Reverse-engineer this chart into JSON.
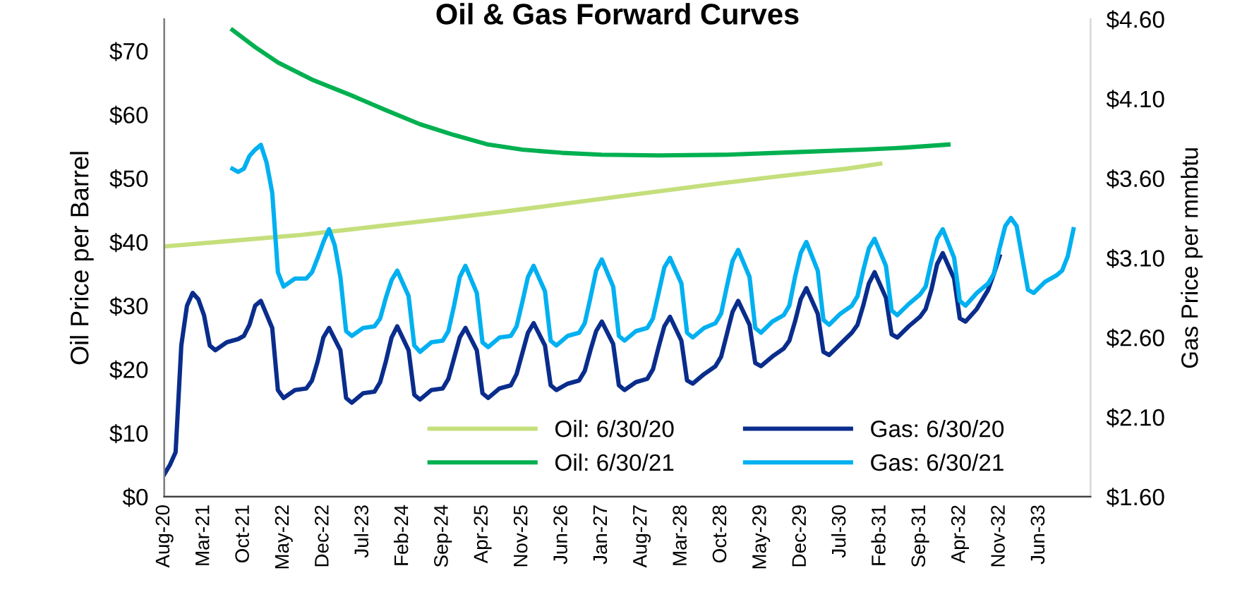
{
  "chart_data": {
    "type": "line",
    "title": "Oil & Gas Forward Curves",
    "ylabel": "Oil Price per Barrel",
    "y2label": "Gas Price per mmbtu",
    "xlim": [
      "2020-08",
      "2034-03"
    ],
    "xticks": [
      {
        "value": "2020-08",
        "label": "Aug-20"
      },
      {
        "value": "2021-03",
        "label": "Mar-21"
      },
      {
        "value": "2021-10",
        "label": "Oct-21"
      },
      {
        "value": "2022-05",
        "label": "May-22"
      },
      {
        "value": "2022-12",
        "label": "Dec-22"
      },
      {
        "value": "2023-07",
        "label": "Jul-23"
      },
      {
        "value": "2024-02",
        "label": "Feb-24"
      },
      {
        "value": "2024-09",
        "label": "Sep-24"
      },
      {
        "value": "2025-04",
        "label": "Apr-25"
      },
      {
        "value": "2025-11",
        "label": "Nov-25"
      },
      {
        "value": "2026-06",
        "label": "Jun-26"
      },
      {
        "value": "2027-01",
        "label": "Jan-27"
      },
      {
        "value": "2027-08",
        "label": "Aug-27"
      },
      {
        "value": "2028-03",
        "label": "Mar-28"
      },
      {
        "value": "2028-10",
        "label": "Oct-28"
      },
      {
        "value": "2029-05",
        "label": "May-29"
      },
      {
        "value": "2029-12",
        "label": "Dec-29"
      },
      {
        "value": "2030-07",
        "label": "Jul-30"
      },
      {
        "value": "2031-02",
        "label": "Feb-31"
      },
      {
        "value": "2031-09",
        "label": "Sep-31"
      },
      {
        "value": "2032-04",
        "label": "Apr-32"
      },
      {
        "value": "2032-11",
        "label": "Nov-32"
      },
      {
        "value": "2033-06",
        "label": "Jun-33"
      }
    ],
    "ylim": [
      0,
      75
    ],
    "yticks": [
      {
        "value": 0,
        "label": "$0"
      },
      {
        "value": 10,
        "label": "$10"
      },
      {
        "value": 20,
        "label": "$20"
      },
      {
        "value": 30,
        "label": "$30"
      },
      {
        "value": 40,
        "label": "$40"
      },
      {
        "value": 50,
        "label": "$50"
      },
      {
        "value": 60,
        "label": "$60"
      },
      {
        "value": 70,
        "label": "$70"
      }
    ],
    "y2lim": [
      1.6,
      4.6
    ],
    "y2ticks": [
      {
        "value": 1.6,
        "label": "$1.60"
      },
      {
        "value": 2.1,
        "label": "$2.10"
      },
      {
        "value": 2.6,
        "label": "$2.60"
      },
      {
        "value": 3.1,
        "label": "$3.10"
      },
      {
        "value": 3.6,
        "label": "$3.60"
      },
      {
        "value": 4.1,
        "label": "$4.10"
      },
      {
        "value": 4.6,
        "label": "$4.60"
      }
    ],
    "grid": false,
    "legend": "bottom right",
    "marker": "none",
    "line_style": "solid",
    "series": [
      {
        "name": "Oil: 6/30/20",
        "color": "#c4df7c",
        "x": [
          "2020-08",
          "2021-08",
          "2022-08",
          "2023-08",
          "2024-08",
          "2025-08",
          "2026-08",
          "2027-08",
          "2028-08",
          "2029-08",
          "2030-08",
          "2031-02"
        ],
        "values": [
          39.3,
          40.2,
          41.1,
          42.3,
          43.5,
          44.8,
          46.2,
          47.6,
          49.0,
          50.3,
          51.5,
          52.3
        ]
      },
      {
        "name": "Oil: 6/30/21",
        "color": "#00b050",
        "x": [
          "2021-08",
          "2021-12",
          "2022-04",
          "2022-10",
          "2023-05",
          "2023-11",
          "2024-05",
          "2024-11",
          "2025-05",
          "2025-11",
          "2026-06",
          "2027-01",
          "2027-11",
          "2028-11",
          "2029-11",
          "2030-11",
          "2031-06",
          "2032-02"
        ],
        "values": [
          73.3,
          70.6,
          68.2,
          65.5,
          63.0,
          60.7,
          58.5,
          56.8,
          55.3,
          54.5,
          54.0,
          53.7,
          53.6,
          53.7,
          54.1,
          54.5,
          54.8,
          55.3
        ]
      },
      {
        "name": "Gas: 6/30/20",
        "color": "#0a2d8c",
        "axis": "y2",
        "x": [
          "2020-08",
          "2020-09",
          "2020-10",
          "2020-11",
          "2020-12",
          "2021-01",
          "2021-02",
          "2021-03",
          "2021-04",
          "2021-05",
          "2021-07",
          "2021-09",
          "2021-10",
          "2021-11",
          "2021-12",
          "2022-01",
          "2022-03",
          "2022-04",
          "2022-05",
          "2022-07",
          "2022-09",
          "2022-10",
          "2022-11",
          "2022-12",
          "2023-01",
          "2023-03",
          "2023-04",
          "2023-05",
          "2023-07",
          "2023-09",
          "2023-10",
          "2023-11",
          "2023-12",
          "2024-01",
          "2024-03",
          "2024-04",
          "2024-05",
          "2024-07",
          "2024-09",
          "2024-10",
          "2024-11",
          "2024-12",
          "2025-01",
          "2025-03",
          "2025-04",
          "2025-05",
          "2025-07",
          "2025-09",
          "2025-10",
          "2025-11",
          "2025-12",
          "2026-01",
          "2026-03",
          "2026-04",
          "2026-05",
          "2026-07",
          "2026-09",
          "2026-10",
          "2026-11",
          "2026-12",
          "2027-01",
          "2027-03",
          "2027-04",
          "2027-05",
          "2027-07",
          "2027-09",
          "2027-10",
          "2027-11",
          "2027-12",
          "2028-01",
          "2028-03",
          "2028-04",
          "2028-05",
          "2028-07",
          "2028-09",
          "2028-10",
          "2028-11",
          "2028-12",
          "2029-01",
          "2029-03",
          "2029-04",
          "2029-05",
          "2029-07",
          "2029-09",
          "2029-10",
          "2029-11",
          "2029-12",
          "2030-01",
          "2030-03",
          "2030-04",
          "2030-05",
          "2030-07",
          "2030-09",
          "2030-10",
          "2030-11",
          "2030-12",
          "2031-01",
          "2031-03",
          "2031-04",
          "2031-05",
          "2031-07",
          "2031-09",
          "2031-10",
          "2031-11",
          "2031-12",
          "2032-01",
          "2032-03",
          "2032-04",
          "2032-05",
          "2032-07",
          "2032-09",
          "2032-10",
          "2032-11"
        ],
        "values": [
          1.74,
          1.8,
          1.88,
          2.55,
          2.8,
          2.88,
          2.84,
          2.74,
          2.55,
          2.52,
          2.57,
          2.59,
          2.61,
          2.68,
          2.8,
          2.83,
          2.66,
          2.27,
          2.22,
          2.27,
          2.28,
          2.33,
          2.45,
          2.6,
          2.66,
          2.52,
          2.22,
          2.19,
          2.25,
          2.26,
          2.32,
          2.45,
          2.6,
          2.67,
          2.52,
          2.24,
          2.21,
          2.27,
          2.28,
          2.34,
          2.47,
          2.6,
          2.66,
          2.52,
          2.25,
          2.22,
          2.28,
          2.3,
          2.37,
          2.5,
          2.63,
          2.69,
          2.55,
          2.3,
          2.27,
          2.31,
          2.33,
          2.39,
          2.52,
          2.64,
          2.7,
          2.56,
          2.3,
          2.27,
          2.32,
          2.34,
          2.4,
          2.54,
          2.67,
          2.73,
          2.58,
          2.33,
          2.31,
          2.37,
          2.42,
          2.48,
          2.62,
          2.76,
          2.83,
          2.68,
          2.44,
          2.42,
          2.48,
          2.53,
          2.58,
          2.7,
          2.84,
          2.91,
          2.75,
          2.51,
          2.49,
          2.56,
          2.63,
          2.68,
          2.8,
          2.94,
          3.01,
          2.85,
          2.62,
          2.6,
          2.67,
          2.73,
          2.78,
          2.9,
          3.06,
          3.13,
          2.97,
          2.72,
          2.7,
          2.78,
          2.9,
          3.0,
          3.11
        ]
      },
      {
        "name": "Gas: 6/30/21",
        "color": "#00b0f0",
        "axis": "y2",
        "x": [
          "2021-08",
          "2021-09",
          "2021-10",
          "2021-11",
          "2021-12",
          "2022-01",
          "2022-02",
          "2022-03",
          "2022-04",
          "2022-05",
          "2022-07",
          "2022-09",
          "2022-10",
          "2022-11",
          "2022-12",
          "2023-01",
          "2023-02",
          "2023-03",
          "2023-04",
          "2023-05",
          "2023-07",
          "2023-09",
          "2023-10",
          "2023-11",
          "2023-12",
          "2024-01",
          "2024-03",
          "2024-04",
          "2024-05",
          "2024-07",
          "2024-09",
          "2024-10",
          "2024-11",
          "2024-12",
          "2025-01",
          "2025-03",
          "2025-04",
          "2025-05",
          "2025-07",
          "2025-09",
          "2025-10",
          "2025-11",
          "2025-12",
          "2026-01",
          "2026-03",
          "2026-04",
          "2026-05",
          "2026-07",
          "2026-09",
          "2026-10",
          "2026-11",
          "2026-12",
          "2027-01",
          "2027-03",
          "2027-04",
          "2027-05",
          "2027-07",
          "2027-09",
          "2027-10",
          "2027-11",
          "2027-12",
          "2028-01",
          "2028-03",
          "2028-04",
          "2028-05",
          "2028-07",
          "2028-09",
          "2028-10",
          "2028-11",
          "2028-12",
          "2029-01",
          "2029-03",
          "2029-04",
          "2029-05",
          "2029-07",
          "2029-09",
          "2029-10",
          "2029-11",
          "2029-12",
          "2030-01",
          "2030-03",
          "2030-04",
          "2030-05",
          "2030-07",
          "2030-09",
          "2030-10",
          "2030-11",
          "2030-12",
          "2031-01",
          "2031-03",
          "2031-04",
          "2031-05",
          "2031-07",
          "2031-09",
          "2031-10",
          "2031-11",
          "2031-12",
          "2032-01",
          "2032-03",
          "2032-04",
          "2032-05",
          "2032-07",
          "2032-09",
          "2032-10",
          "2032-11",
          "2032-12",
          "2033-01",
          "2033-02",
          "2033-03",
          "2033-04",
          "2033-05",
          "2033-07",
          "2033-09",
          "2033-10",
          "2033-11",
          "2033-12"
        ],
        "values": [
          3.66,
          3.64,
          3.66,
          3.74,
          3.78,
          3.81,
          3.7,
          3.51,
          3.01,
          2.92,
          2.97,
          2.97,
          3.01,
          3.1,
          3.2,
          3.28,
          3.18,
          2.98,
          2.64,
          2.61,
          2.66,
          2.67,
          2.72,
          2.85,
          2.96,
          3.02,
          2.86,
          2.55,
          2.51,
          2.57,
          2.58,
          2.64,
          2.8,
          2.98,
          3.05,
          2.88,
          2.57,
          2.54,
          2.6,
          2.61,
          2.67,
          2.82,
          2.98,
          3.05,
          2.89,
          2.58,
          2.55,
          2.61,
          2.63,
          2.69,
          2.85,
          3.02,
          3.09,
          2.92,
          2.61,
          2.58,
          2.64,
          2.66,
          2.72,
          2.88,
          3.04,
          3.1,
          2.94,
          2.63,
          2.6,
          2.66,
          2.69,
          2.75,
          2.92,
          3.08,
          3.15,
          2.98,
          2.66,
          2.63,
          2.7,
          2.74,
          2.8,
          2.98,
          3.13,
          3.2,
          3.02,
          2.71,
          2.68,
          2.75,
          2.8,
          2.86,
          3.02,
          3.16,
          3.22,
          3.05,
          2.77,
          2.74,
          2.81,
          2.87,
          2.92,
          3.08,
          3.22,
          3.28,
          3.1,
          2.83,
          2.8,
          2.88,
          2.94,
          3.0,
          3.16,
          3.3,
          3.35,
          3.3,
          3.1,
          2.9,
          2.88,
          2.95,
          2.99,
          3.02,
          3.11,
          3.28
        ]
      }
    ]
  }
}
